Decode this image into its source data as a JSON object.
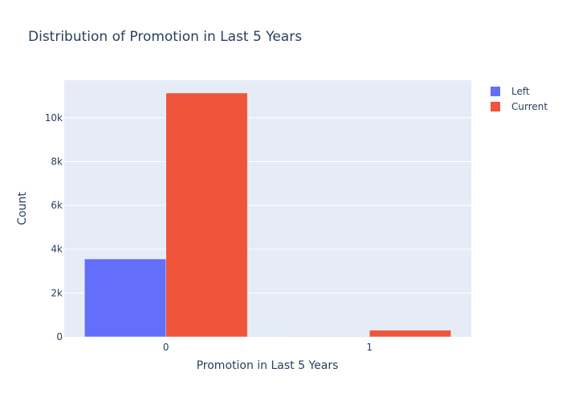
{
  "chart_data": {
    "type": "bar",
    "title": "Distribution of Promotion in Last 5 Years",
    "xlabel": "Promotion in Last 5 Years",
    "ylabel": "Count",
    "categories": [
      "0",
      "1"
    ],
    "series": [
      {
        "name": "Left",
        "color": "#636efa",
        "values": [
          3552,
          19
        ]
      },
      {
        "name": "Current",
        "color": "#ef553b",
        "values": [
          11128,
          300
        ]
      }
    ],
    "ylim": [
      0,
      11713
    ],
    "yticks": [
      0,
      2000,
      4000,
      6000,
      8000,
      10000
    ],
    "ytick_labels": [
      "0",
      "2k",
      "4k",
      "6k",
      "8k",
      "10k"
    ],
    "grid": true,
    "legend": "top-right",
    "plot_bg": "#e5ecf6"
  }
}
